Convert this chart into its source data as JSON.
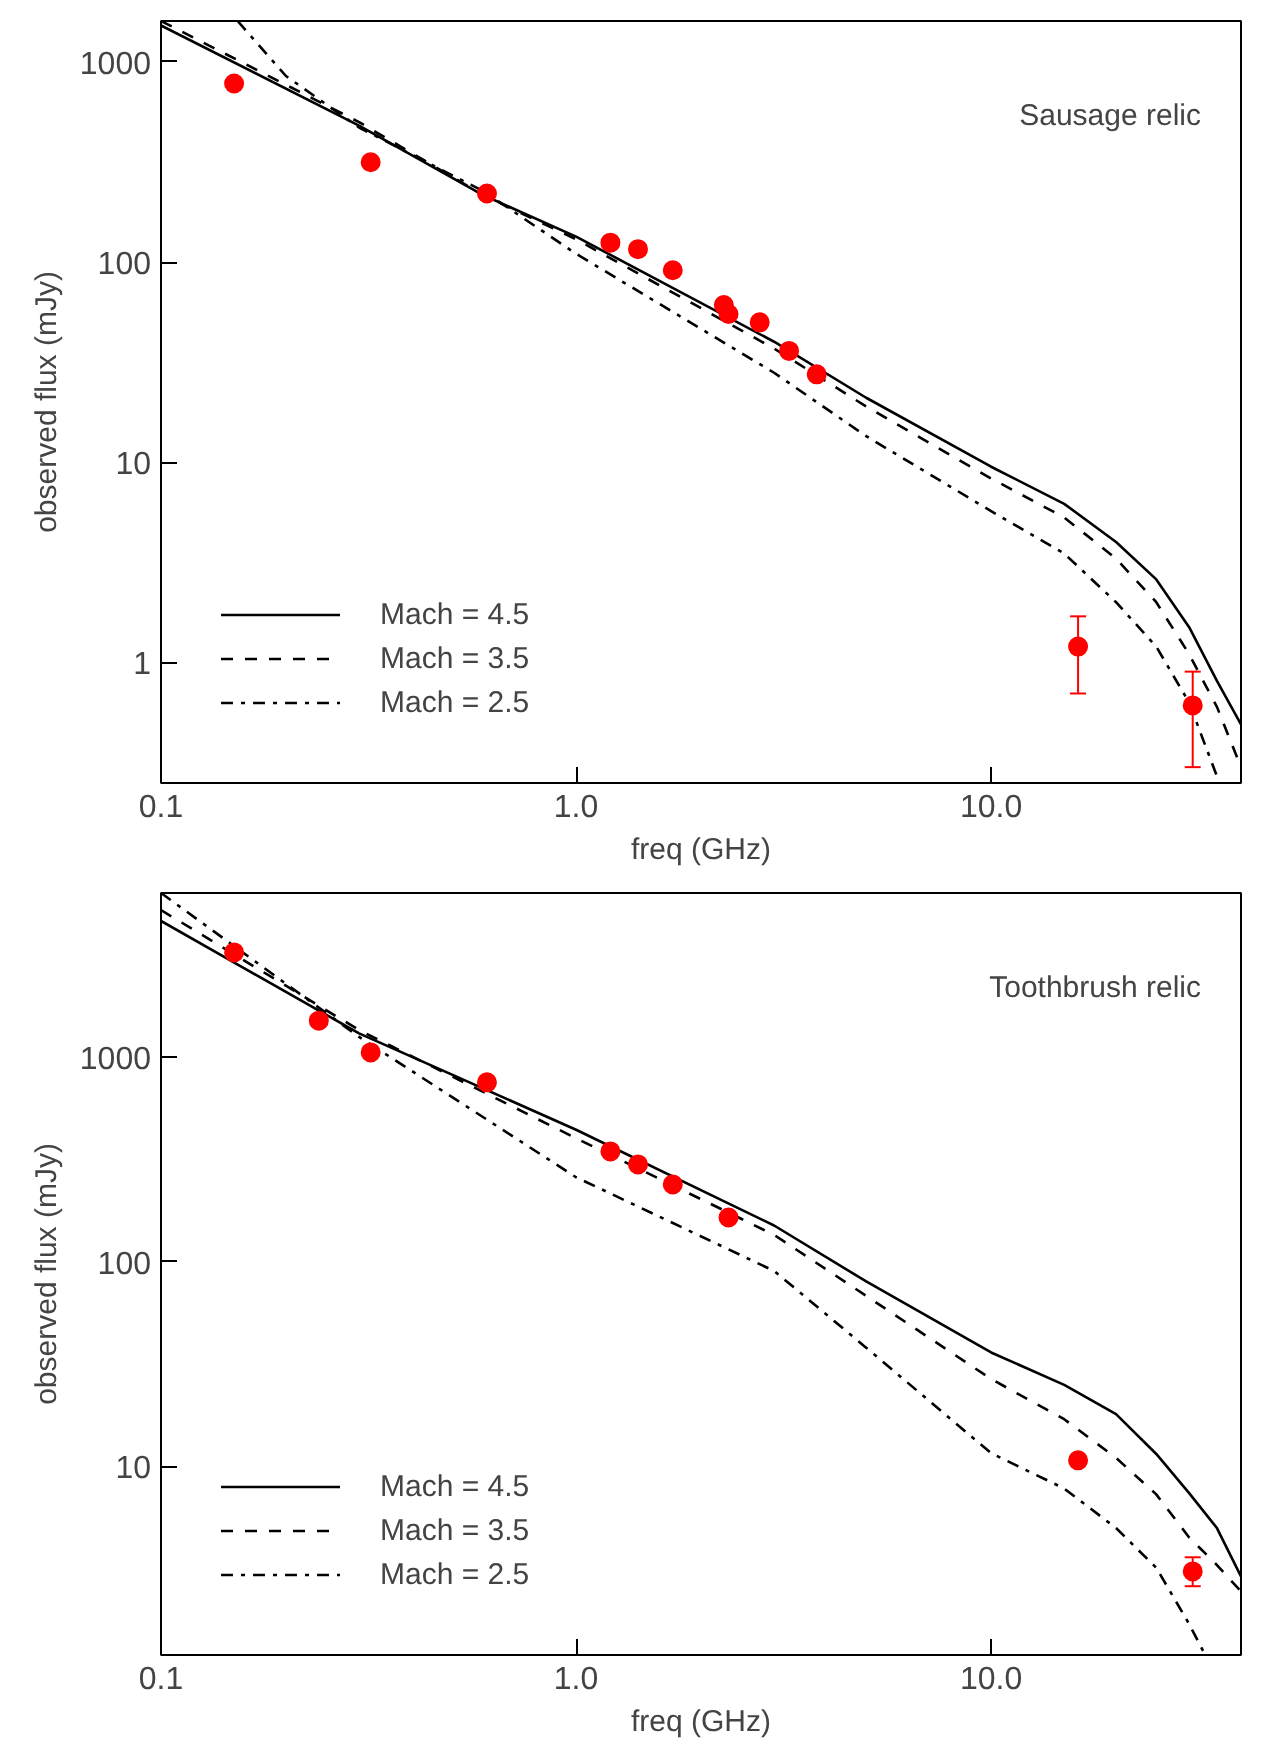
{
  "chart_data": [
    {
      "type": "line",
      "title": "Sausage relic",
      "xlabel": "freq (GHz)",
      "ylabel": "observed flux (mJy)",
      "log": "xy",
      "legend": "bottom left",
      "xlim": [
        0.1,
        40
      ],
      "ylim": [
        0.25,
        1600
      ],
      "xticks": [
        {
          "value": 0.1,
          "label": "0.1"
        },
        {
          "value": 1,
          "label": "1.0"
        },
        {
          "value": 10,
          "label": "10.0"
        }
      ],
      "yticks": [
        {
          "value": 1,
          "label": "1"
        },
        {
          "value": 10,
          "label": "10"
        },
        {
          "value": 100,
          "label": "100"
        },
        {
          "value": 1000,
          "label": "1000"
        }
      ],
      "series": [
        {
          "name": "Mach = 4.5",
          "color": "#000000",
          "line_style": "solid",
          "x": [
            0.1,
            0.3,
            0.6,
            1.0,
            3.0,
            5,
            10,
            15,
            20,
            25,
            30,
            35,
            40
          ],
          "values": [
            1520,
            480,
            215,
            134,
            40,
            21,
            9.5,
            6.2,
            4.0,
            2.6,
            1.5,
            0.81,
            0.49
          ]
        },
        {
          "name": "Mach = 3.5",
          "color": "#000000",
          "line_style": "dashed",
          "x": [
            0.1,
            0.3,
            0.6,
            1.0,
            3.0,
            5,
            10,
            15,
            20,
            25,
            30,
            35,
            40
          ],
          "values": [
            1600,
            500,
            215,
            130,
            37,
            19,
            8.3,
            5.3,
            3.3,
            2.0,
            1.1,
            0.6,
            0.3
          ]
        },
        {
          "name": "Mach = 2.5",
          "color": "#000000",
          "line_style": "dashdot",
          "x": [
            0.153,
            0.2,
            0.3,
            0.6,
            1.0,
            3.0,
            5,
            10,
            15,
            20,
            25,
            30,
            35
          ],
          "values": [
            1600,
            850,
            470,
            225,
            110,
            28,
            13.5,
            5.7,
            3.5,
            2.0,
            1.2,
            0.63,
            0.27
          ]
        },
        {
          "type": "scatter",
          "color": "#ff0000",
          "marker": "circle",
          "x": [
            0.15,
            0.32,
            0.61,
            1.21,
            1.41,
            1.71,
            2.27,
            2.33,
            2.77,
            3.26,
            3.8,
            16.2,
            30.6
          ],
          "values": [
            780,
            315,
            220,
            125,
            116,
            91,
            61,
            55,
            50,
            36,
            27.5,
            1.2,
            0.61
          ],
          "errors": [
            null,
            null,
            null,
            null,
            null,
            null,
            null,
            null,
            null,
            null,
            null,
            [
              0.7,
              1.7
            ],
            [
              0.3,
              0.9
            ]
          ]
        }
      ]
    },
    {
      "type": "line",
      "title": "Toothbrush relic",
      "xlabel": "freq (GHz)",
      "ylabel": "observed flux (mJy)",
      "log": "xy",
      "legend": "bottom left",
      "xlim": [
        0.1,
        40
      ],
      "ylim": [
        1.2,
        6300
      ],
      "xticks": [
        {
          "value": 0.1,
          "label": "0.1"
        },
        {
          "value": 1,
          "label": "1.0"
        },
        {
          "value": 10,
          "label": "10.0"
        }
      ],
      "yticks": [
        {
          "value": 10,
          "label": "10"
        },
        {
          "value": 100,
          "label": "100"
        },
        {
          "value": 1000,
          "label": "1000"
        }
      ],
      "series": [
        {
          "name": "Mach = 4.5",
          "color": "#000000",
          "line_style": "solid",
          "x": [
            0.1,
            0.3,
            1.0,
            3.0,
            5,
            10,
            15,
            20,
            25,
            30,
            35,
            40
          ],
          "values": [
            4600,
            1300,
            440,
            150,
            80,
            36,
            25,
            18,
            11.5,
            7.4,
            5,
            2.9
          ]
        },
        {
          "name": "Mach = 3.5",
          "color": "#000000",
          "line_style": "dashed",
          "x": [
            0.1,
            0.3,
            1.0,
            3.0,
            5,
            10,
            15,
            20,
            25,
            30,
            35,
            40
          ],
          "values": [
            5200,
            1350,
            400,
            135,
            68,
            26.7,
            17,
            11,
            7.3,
            4.5,
            3.3,
            2.45
          ]
        },
        {
          "name": "Mach = 2.5",
          "color": "#000000",
          "line_style": "dashdot",
          "x": [
            0.1,
            0.3,
            1.0,
            3.0,
            5,
            10,
            15,
            20,
            25,
            30,
            32.8
          ],
          "values": [
            6300,
            1250,
            258,
            90,
            38,
            11.6,
            7.8,
            5.0,
            3.2,
            1.7,
            1.2
          ]
        },
        {
          "type": "scatter",
          "color": "#ff0000",
          "marker": "circle",
          "x": [
            0.15,
            0.24,
            0.32,
            0.61,
            1.21,
            1.41,
            1.71,
            2.33,
            16.2,
            30.6
          ],
          "values": [
            3230,
            1500,
            1050,
            750,
            345,
            298,
            238,
            164,
            10.7,
            3.07
          ],
          "errors": [
            null,
            null,
            null,
            null,
            null,
            null,
            null,
            null,
            null,
            [
              2.6,
              3.6
            ]
          ]
        }
      ]
    }
  ]
}
